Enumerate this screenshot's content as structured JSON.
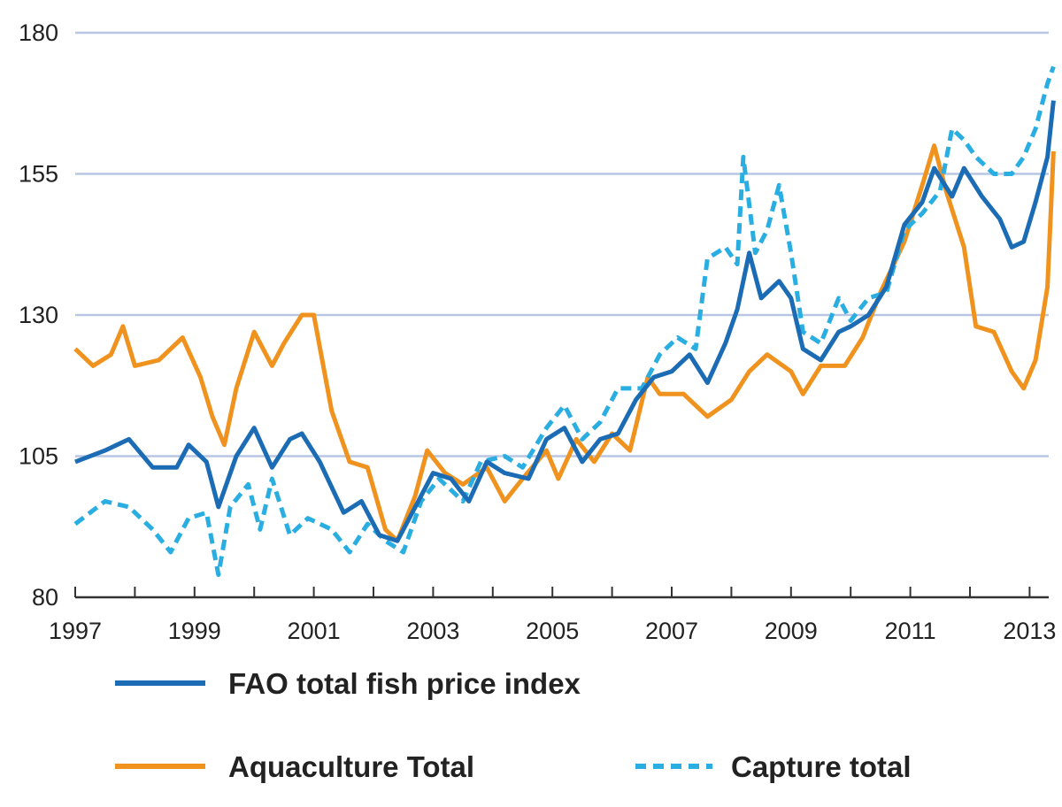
{
  "chart_data": {
    "type": "line",
    "title": "",
    "xlabel": "",
    "ylabel": "",
    "xlim": [
      1997,
      2013.4
    ],
    "ylim": [
      80,
      180
    ],
    "yticks": [
      80,
      105,
      130,
      155,
      180
    ],
    "xticks": [
      1997,
      1999,
      2001,
      2003,
      2005,
      2007,
      2009,
      2011,
      2013
    ],
    "grid": "horizontal",
    "legend_position": "bottom",
    "series": [
      {
        "name": "FAO total fish price index",
        "color": "#1b6cb4",
        "style": "solid",
        "x": [
          1997.0,
          1997.5,
          1997.9,
          1998.3,
          1998.7,
          1998.9,
          1999.2,
          1999.4,
          1999.7,
          2000.0,
          2000.3,
          2000.6,
          2000.8,
          2001.1,
          2001.5,
          2001.8,
          2002.1,
          2002.4,
          2002.7,
          2003.0,
          2003.3,
          2003.6,
          2003.9,
          2004.2,
          2004.6,
          2004.9,
          2005.2,
          2005.5,
          2005.8,
          2006.1,
          2006.4,
          2006.7,
          2007.0,
          2007.3,
          2007.6,
          2007.9,
          2008.1,
          2008.3,
          2008.5,
          2008.8,
          2009.0,
          2009.2,
          2009.5,
          2009.8,
          2010.0,
          2010.3,
          2010.6,
          2010.9,
          2011.2,
          2011.4,
          2011.7,
          2011.9,
          2012.2,
          2012.5,
          2012.7,
          2012.9,
          2013.1,
          2013.3,
          2013.4
        ],
        "y": [
          104,
          106,
          108,
          103,
          103,
          107,
          104,
          96,
          105,
          110,
          103,
          108,
          109,
          104,
          95,
          97,
          91,
          90,
          96,
          102,
          101,
          97,
          104,
          102,
          101,
          108,
          110,
          104,
          108,
          109,
          115,
          119,
          120,
          123,
          118,
          125,
          131,
          141,
          133,
          136,
          133,
          124,
          122,
          127,
          128,
          130,
          135,
          146,
          150,
          156,
          151,
          156,
          151,
          147,
          142,
          143,
          150,
          158,
          168
        ]
      },
      {
        "name": "Aquaculture Total",
        "color": "#f0921e",
        "style": "solid",
        "x": [
          1997.0,
          1997.3,
          1997.6,
          1997.8,
          1998.0,
          1998.4,
          1998.8,
          1999.1,
          1999.3,
          1999.5,
          1999.7,
          2000.0,
          2000.3,
          2000.5,
          2000.8,
          2001.0,
          2001.3,
          2001.6,
          2001.9,
          2002.2,
          2002.4,
          2002.7,
          2002.9,
          2003.2,
          2003.5,
          2003.9,
          2004.2,
          2004.5,
          2004.9,
          2005.1,
          2005.4,
          2005.7,
          2006.0,
          2006.3,
          2006.6,
          2006.8,
          2007.2,
          2007.6,
          2008.0,
          2008.3,
          2008.6,
          2009.0,
          2009.2,
          2009.5,
          2009.9,
          2010.2,
          2010.5,
          2010.9,
          2011.2,
          2011.4,
          2011.6,
          2011.9,
          2012.1,
          2012.4,
          2012.7,
          2012.9,
          2013.1,
          2013.3,
          2013.4
        ],
        "y": [
          124,
          121,
          123,
          128,
          121,
          122,
          126,
          119,
          112,
          107,
          117,
          127,
          121,
          125,
          130,
          130,
          113,
          104,
          103,
          92,
          90,
          98,
          106,
          102,
          100,
          103,
          97,
          101,
          106,
          101,
          108,
          104,
          109,
          106,
          119,
          116,
          116,
          112,
          115,
          120,
          123,
          120,
          116,
          121,
          121,
          126,
          134,
          143,
          153,
          160,
          152,
          142,
          128,
          127,
          120,
          117,
          122,
          135,
          159
        ]
      },
      {
        "name": "Capture total",
        "color": "#2aaee2",
        "style": "dashed",
        "x": [
          1997.0,
          1997.5,
          1997.9,
          1998.3,
          1998.6,
          1998.9,
          1999.2,
          1999.4,
          1999.6,
          1999.9,
          2000.1,
          2000.3,
          2000.6,
          2000.9,
          2001.3,
          2001.6,
          2001.9,
          2002.2,
          2002.5,
          2002.8,
          2003.1,
          2003.5,
          2003.8,
          2004.2,
          2004.5,
          2004.9,
          2005.2,
          2005.5,
          2005.8,
          2006.1,
          2006.5,
          2006.8,
          2007.1,
          2007.4,
          2007.6,
          2007.9,
          2008.1,
          2008.2,
          2008.4,
          2008.6,
          2008.8,
          2009.0,
          2009.2,
          2009.5,
          2009.8,
          2010.0,
          2010.3,
          2010.6,
          2010.9,
          2011.2,
          2011.5,
          2011.7,
          2011.9,
          2012.1,
          2012.4,
          2012.7,
          2012.9,
          2013.1,
          2013.3,
          2013.4
        ],
        "y": [
          93,
          97,
          96,
          92,
          88,
          94,
          95,
          84,
          96,
          100,
          92,
          101,
          91,
          94,
          92,
          88,
          93,
          90,
          88,
          97,
          101,
          97,
          104,
          105,
          103,
          110,
          114,
          108,
          111,
          117,
          117,
          123,
          126,
          124,
          140,
          142,
          139,
          158,
          141,
          145,
          153,
          141,
          127,
          125,
          133,
          129,
          133,
          134,
          145,
          148,
          152,
          163,
          161,
          158,
          155,
          155,
          158,
          163,
          171,
          174
        ]
      }
    ]
  }
}
